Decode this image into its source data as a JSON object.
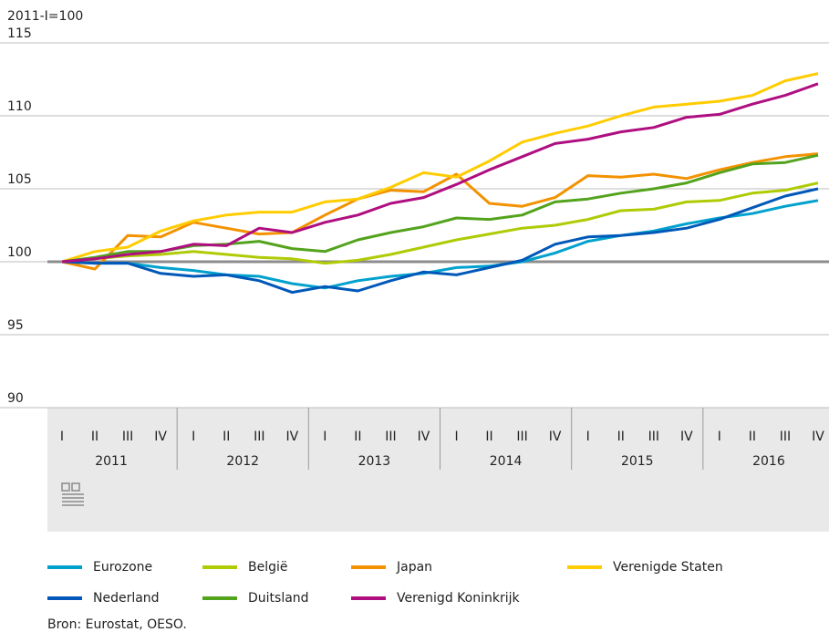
{
  "chart_data": {
    "type": "line",
    "y_axis_label": "2011-I=100",
    "categories": [
      "I",
      "II",
      "III",
      "IV",
      "I",
      "II",
      "III",
      "IV",
      "I",
      "II",
      "III",
      "IV",
      "I",
      "II",
      "III",
      "IV",
      "I",
      "II",
      "III",
      "IV",
      "I",
      "II",
      "III",
      "IV"
    ],
    "years": [
      "2011",
      "2012",
      "2013",
      "2014",
      "2015",
      "2016"
    ],
    "ylim": [
      90,
      115
    ],
    "yticks": [
      90,
      95,
      100,
      105,
      110,
      115
    ],
    "grid": true,
    "reference_line": 100,
    "series": [
      {
        "name": "Eurozone",
        "color": "#00a1cd",
        "values": [
          100,
          99.9,
          99.9,
          99.6,
          99.4,
          99.1,
          99.0,
          98.5,
          98.2,
          98.7,
          99.0,
          99.2,
          99.6,
          99.7,
          100.0,
          100.6,
          101.4,
          101.8,
          102.1,
          102.6,
          103.0,
          103.3,
          103.8,
          104.2
        ]
      },
      {
        "name": "België",
        "color": "#afcb05",
        "values": [
          100,
          100.2,
          100.4,
          100.5,
          100.7,
          100.5,
          100.3,
          100.2,
          99.9,
          100.1,
          100.5,
          101.0,
          101.5,
          101.9,
          102.3,
          102.5,
          102.9,
          103.5,
          103.6,
          104.1,
          104.2,
          104.7,
          104.9,
          105.4
        ]
      },
      {
        "name": "Japan",
        "color": "#f39200",
        "values": [
          100,
          99.5,
          101.8,
          101.7,
          102.7,
          102.3,
          101.9,
          102.0,
          103.2,
          104.3,
          104.9,
          104.8,
          106.0,
          104.0,
          103.8,
          104.4,
          105.9,
          105.8,
          106.0,
          105.7,
          106.3,
          106.8,
          107.2,
          107.4
        ]
      },
      {
        "name": "Verenigde Staten",
        "color": "#ffcc00",
        "values": [
          100,
          100.7,
          101.0,
          102.1,
          102.8,
          103.2,
          103.4,
          103.4,
          104.1,
          104.3,
          105.1,
          106.1,
          105.8,
          106.9,
          108.2,
          108.8,
          109.3,
          110.0,
          110.6,
          110.8,
          111.0,
          111.4,
          112.4,
          112.9
        ]
      },
      {
        "name": "Nederland",
        "color": "#0058b8",
        "values": [
          100,
          99.9,
          99.9,
          99.2,
          99.0,
          99.1,
          98.7,
          97.9,
          98.3,
          98.0,
          98.7,
          99.3,
          99.1,
          99.6,
          100.1,
          101.2,
          101.7,
          101.8,
          102.0,
          102.3,
          102.9,
          103.7,
          104.5,
          105.0
        ]
      },
      {
        "name": "Duitsland",
        "color": "#53a31d",
        "values": [
          100,
          100.3,
          100.7,
          100.7,
          101.1,
          101.2,
          101.4,
          100.9,
          100.7,
          101.5,
          102.0,
          102.4,
          103.0,
          102.9,
          103.2,
          104.1,
          104.3,
          104.7,
          105.0,
          105.4,
          106.1,
          106.7,
          106.8,
          107.3
        ]
      },
      {
        "name": "Verenigd Koninkrijk",
        "color": "#af0e80",
        "values": [
          100,
          100.2,
          100.5,
          100.7,
          101.2,
          101.1,
          102.3,
          102.0,
          102.7,
          103.2,
          104.0,
          104.4,
          105.3,
          106.3,
          107.2,
          108.1,
          108.4,
          108.9,
          109.2,
          109.9,
          110.1,
          110.8,
          111.4,
          112.2
        ]
      }
    ],
    "source": "Bron: Eurostat, OESO."
  }
}
